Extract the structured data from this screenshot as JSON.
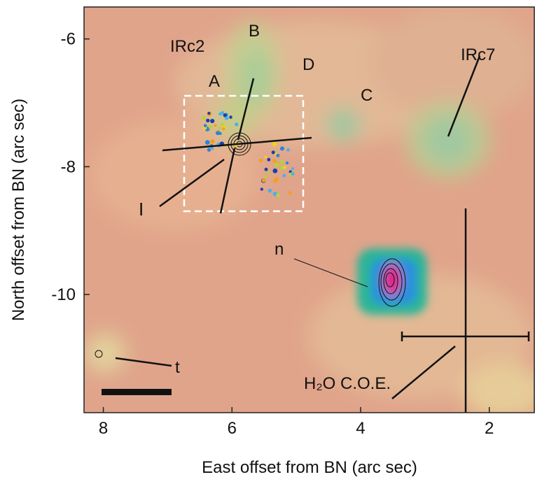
{
  "chart_data": {
    "type": "image",
    "xlabel": "East offset from BN (arc sec)",
    "ylabel": "North offset from BN (arc sec)",
    "xlim": [
      8.3,
      1.3
    ],
    "xticks": [
      8,
      6,
      4,
      2
    ],
    "ylim": [
      -11.85,
      -5.5
    ],
    "yticks": [
      -6,
      -8,
      -10
    ],
    "annotations": [
      "IRc2",
      "B",
      "A",
      "D",
      "C",
      "IRc7",
      "I",
      "n",
      "t",
      "H₂O C.O.E."
    ]
  }
}
